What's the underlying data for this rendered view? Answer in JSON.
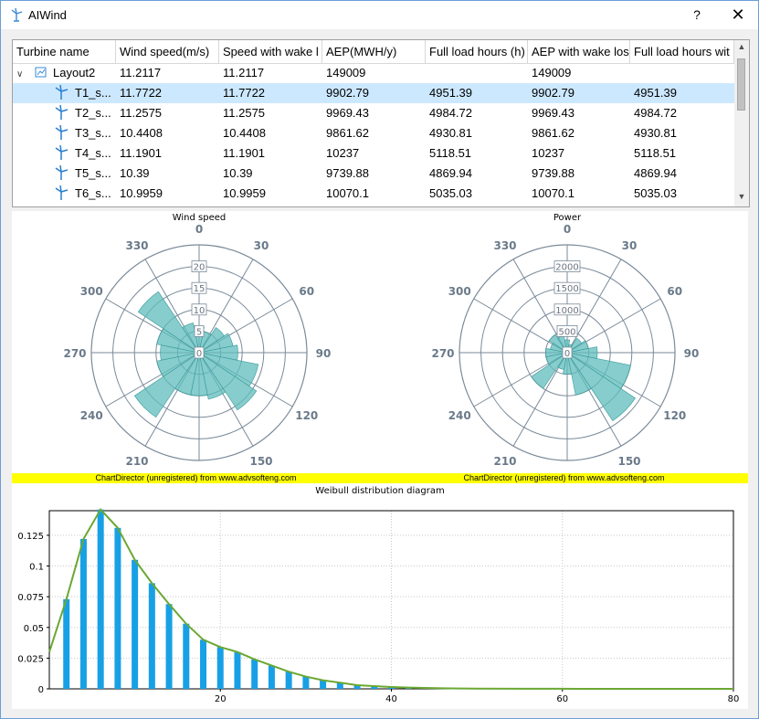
{
  "window": {
    "title": "AIWind",
    "help_label": "?",
    "close_label": "✕"
  },
  "table": {
    "columns": [
      "Turbine name",
      "Wind speed(m/s)",
      "Speed with wake l",
      "AEP(MWH/y)",
      "Full load hours (h)",
      "AEP with wake los",
      "Full load hours wit"
    ],
    "rows": [
      {
        "name": "Layout2",
        "level": 0,
        "cells": [
          "11.2117",
          "11.2117",
          "149009",
          "",
          "149009",
          ""
        ],
        "selected": false
      },
      {
        "name": "T1_s...",
        "level": 1,
        "cells": [
          "11.7722",
          "11.7722",
          "9902.79",
          "4951.39",
          "9902.79",
          "4951.39"
        ],
        "selected": true
      },
      {
        "name": "T2_s...",
        "level": 1,
        "cells": [
          "11.2575",
          "11.2575",
          "9969.43",
          "4984.72",
          "9969.43",
          "4984.72"
        ],
        "selected": false
      },
      {
        "name": "T3_s...",
        "level": 1,
        "cells": [
          "10.4408",
          "10.4408",
          "9861.62",
          "4930.81",
          "9861.62",
          "4930.81"
        ],
        "selected": false
      },
      {
        "name": "T4_s...",
        "level": 1,
        "cells": [
          "11.1901",
          "11.1901",
          "10237",
          "5118.51",
          "10237",
          "5118.51"
        ],
        "selected": false
      },
      {
        "name": "T5_s...",
        "level": 1,
        "cells": [
          "10.39",
          "10.39",
          "9739.88",
          "4869.94",
          "9739.88",
          "4869.94"
        ],
        "selected": false
      },
      {
        "name": "T6_s...",
        "level": 1,
        "cells": [
          "10.9959",
          "10.9959",
          "10070.1",
          "5035.03",
          "10070.1",
          "5035.03"
        ],
        "selected": false
      }
    ]
  },
  "watermark": "ChartDirector (unregistered) from www.advsofteng.com",
  "chart_data": [
    {
      "type": "rose",
      "title": "Wind speed",
      "angle_labels": [
        "0",
        "30",
        "60",
        "90",
        "120",
        "150",
        "180",
        "210",
        "240",
        "270",
        "300",
        "330"
      ],
      "radial_ticks": [
        0,
        5,
        10,
        15,
        20
      ],
      "rmax": 25,
      "sector_deg": 22.5,
      "directions": [
        0,
        22.5,
        45,
        67.5,
        90,
        112.5,
        135,
        157.5,
        180,
        202.5,
        225,
        247.5,
        270,
        292.5,
        315,
        337.5
      ],
      "values": [
        6,
        5,
        7,
        8,
        9,
        14,
        16,
        11,
        10,
        10,
        18,
        10,
        9,
        10,
        17,
        7
      ],
      "color": "#5fbcbc"
    },
    {
      "type": "rose",
      "title": "Power",
      "angle_labels": [
        "0",
        "30",
        "60",
        "90",
        "120",
        "150",
        "180",
        "210",
        "240",
        "270",
        "300",
        "330"
      ],
      "radial_ticks": [
        0,
        500,
        1000,
        1500,
        2000
      ],
      "rmax": 2500,
      "sector_deg": 22.5,
      "directions": [
        0,
        22.5,
        45,
        67.5,
        90,
        112.5,
        135,
        157.5,
        180,
        202.5,
        225,
        247.5,
        270,
        292.5,
        315,
        337.5
      ],
      "values": [
        300,
        200,
        400,
        500,
        700,
        1500,
        1900,
        1000,
        500,
        400,
        1000,
        500,
        500,
        400,
        500,
        400
      ],
      "color": "#5fbcbc"
    },
    {
      "type": "bar",
      "title": "Weibull distribution diagram",
      "xlim": [
        0,
        80
      ],
      "ylim": [
        0,
        0.145
      ],
      "yticks": [
        0,
        0.025,
        0.05,
        0.075,
        0.1,
        0.125
      ],
      "ytick_labels": [
        "0",
        "0.025",
        "0.05",
        "0.075",
        "0.1",
        "0.125"
      ],
      "xticks": [
        20,
        40,
        60,
        80
      ],
      "x": [
        2,
        4,
        6,
        8,
        10,
        12,
        14,
        16,
        18,
        20,
        22,
        24,
        26,
        28,
        30,
        32,
        34,
        36,
        38,
        40,
        42,
        44,
        46,
        48,
        50
      ],
      "values": [
        0.073,
        0.122,
        0.146,
        0.131,
        0.105,
        0.086,
        0.069,
        0.053,
        0.04,
        0.034,
        0.03,
        0.024,
        0.019,
        0.014,
        0.01,
        0.007,
        0.005,
        0.003,
        0.0022,
        0.0015,
        0.001,
        0.0007,
        0.0005,
        0.0003,
        0.0002
      ],
      "curve_x": [
        0,
        2,
        4,
        6,
        8,
        10,
        12,
        14,
        16,
        18,
        20,
        22,
        24,
        26,
        28,
        30,
        32,
        34,
        36,
        38,
        40,
        42,
        44,
        46,
        48,
        50,
        55,
        60,
        70,
        80
      ],
      "curve_y": [
        0.03,
        0.073,
        0.122,
        0.146,
        0.131,
        0.105,
        0.086,
        0.069,
        0.053,
        0.04,
        0.034,
        0.03,
        0.024,
        0.019,
        0.014,
        0.01,
        0.007,
        0.005,
        0.003,
        0.0022,
        0.0015,
        0.001,
        0.0007,
        0.0005,
        0.0003,
        0.0002,
        0.0001,
        5e-05,
        1e-05,
        0
      ],
      "bar_color": "#18a0e6",
      "line_color": "#6aa832"
    }
  ]
}
